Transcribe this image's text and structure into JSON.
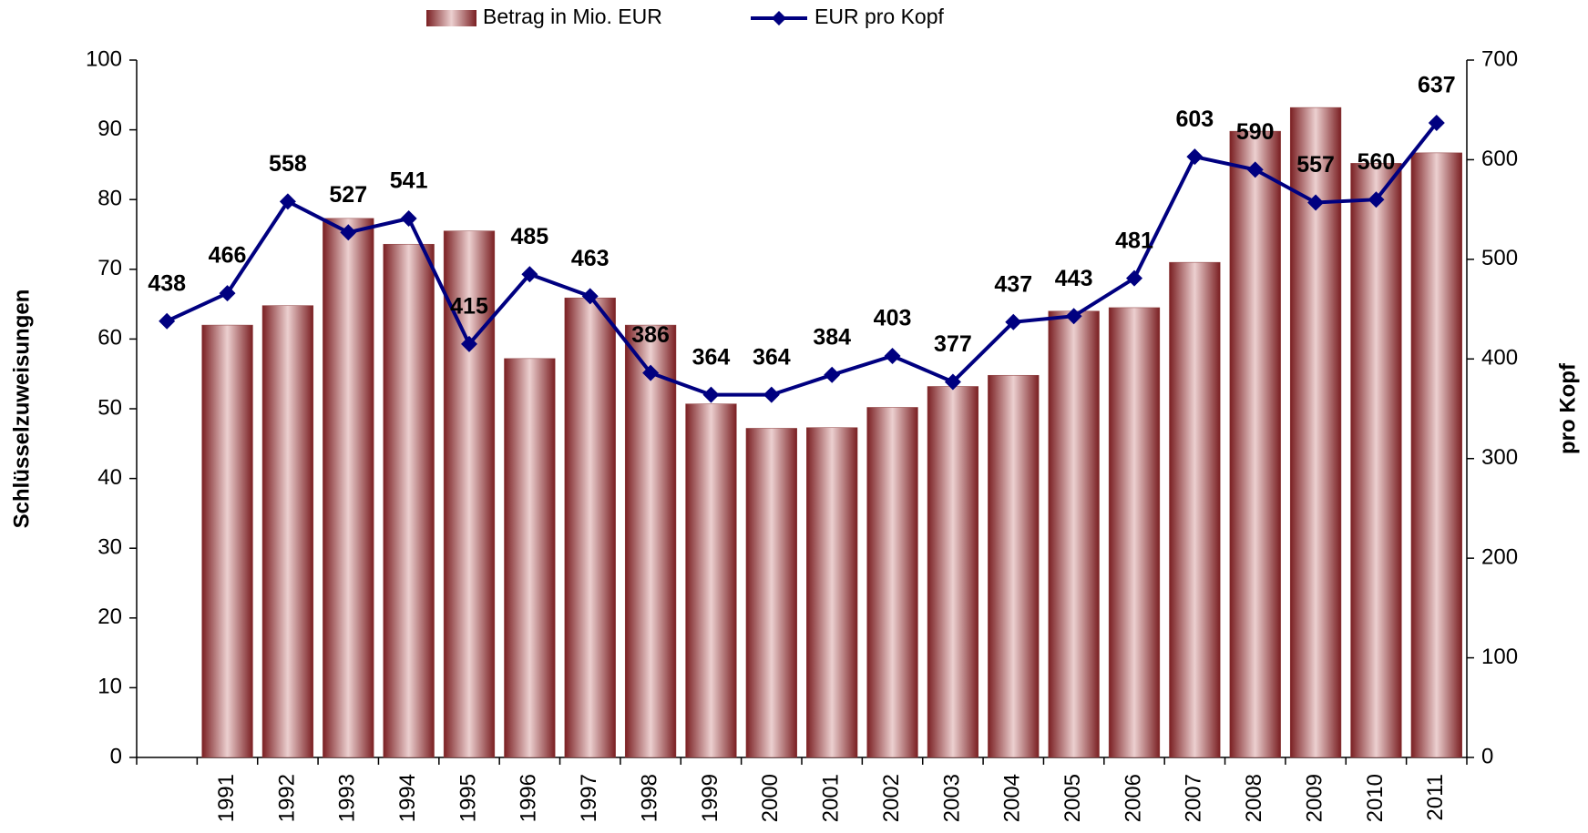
{
  "chart_data": {
    "type": "bar_line",
    "y_label": "Schlüsselzuweisungen",
    "y2_label": "pro Kopf",
    "categories": [
      null,
      "1991",
      "1992",
      "1993",
      "1994",
      "1995",
      "1996",
      "1997",
      "1998",
      "1999",
      "2000",
      "2001",
      "2002",
      "2003",
      "2004",
      "2005",
      "2006",
      "2007",
      "2008",
      "2009",
      "2010",
      "2011"
    ],
    "series": [
      {
        "name": "Betrag in Mio. EUR",
        "color": "#8b3a3a",
        "type": "bar",
        "values": [
          null,
          62,
          64.8,
          77.3,
          73.6,
          75.5,
          57.2,
          65.9,
          62,
          50.7,
          47.2,
          47.3,
          50.2,
          53.2,
          54.8,
          64,
          64.5,
          71,
          89.8,
          93.2,
          85.2,
          86.7
        ]
      },
      {
        "name": "EUR pro Kopf",
        "color": "#000080",
        "type": "line",
        "axis": "y2",
        "values": [
          438,
          466,
          558,
          527,
          541,
          415,
          485,
          463,
          386,
          364,
          364,
          384,
          403,
          377,
          437,
          443,
          481,
          603,
          590,
          557,
          560,
          637
        ]
      }
    ],
    "ylim": [
      0,
      100
    ],
    "yticks": [
      0,
      10,
      20,
      30,
      40,
      50,
      60,
      70,
      80,
      90,
      100
    ],
    "y2lim": [
      0,
      700
    ],
    "y2ticks": [
      0,
      100,
      200,
      300,
      400,
      500,
      600,
      700
    ],
    "legend": "top"
  }
}
